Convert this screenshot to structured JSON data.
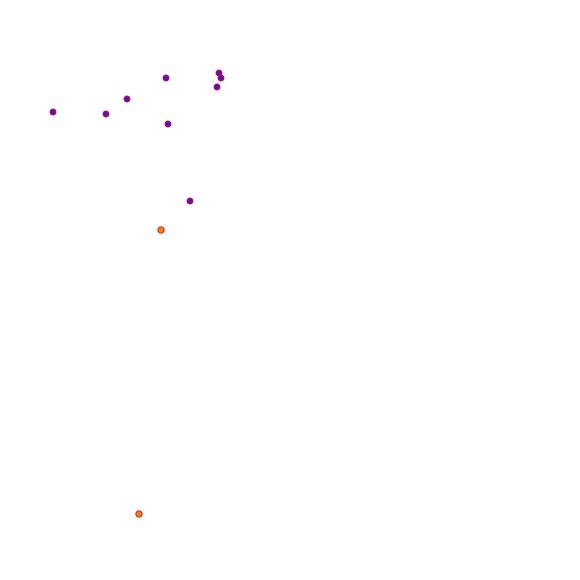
{
  "map": {
    "background": "#ffffff",
    "point_styles": {
      "blue": {
        "fill": "#5a0fc8",
        "stroke": "#c8102e"
      },
      "orange": {
        "fill": "#ff7f00",
        "stroke": "#c8102e"
      }
    },
    "points": [
      {
        "style": "blue"
      },
      {
        "style": "blue"
      },
      {
        "style": "blue"
      },
      {
        "style": "blue"
      },
      {
        "style": "blue"
      },
      {
        "style": "blue"
      },
      {
        "style": "blue"
      },
      {
        "style": "blue"
      },
      {
        "style": "blue"
      },
      {
        "style": "orange"
      },
      {
        "style": "orange"
      }
    ]
  }
}
